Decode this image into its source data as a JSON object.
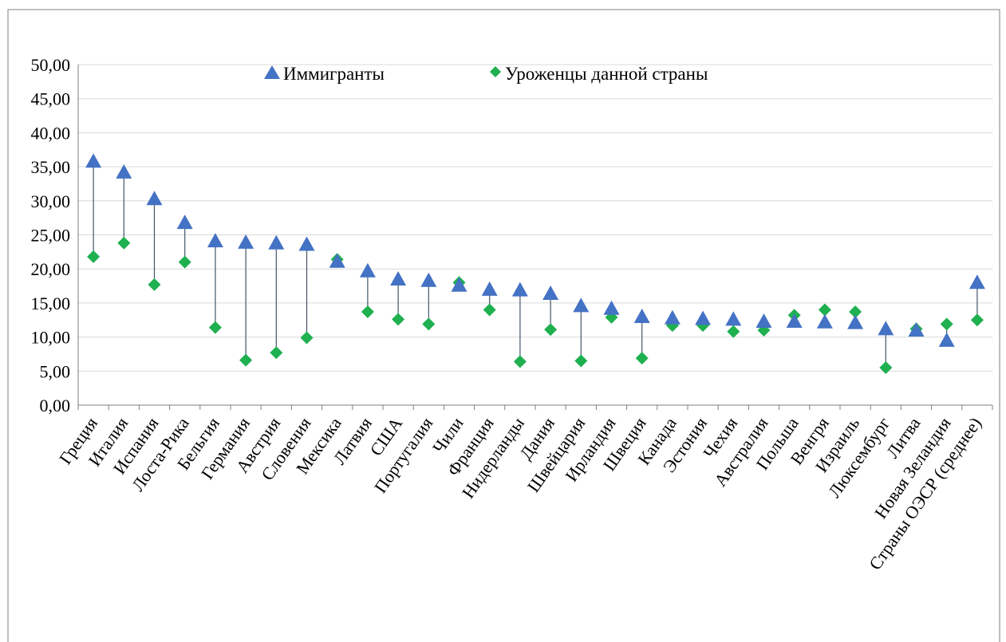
{
  "chart_data": {
    "type": "scatter",
    "title": "",
    "xlabel": "",
    "ylabel": "",
    "ylim": [
      0,
      50
    ],
    "y_ticks": [
      "0,00",
      "5,00",
      "10,00",
      "15,00",
      "20,00",
      "25,00",
      "30,00",
      "35,00",
      "40,00",
      "45,00",
      "50,00"
    ],
    "grid": true,
    "legend_position": "top",
    "categories": [
      "Греция",
      "Италия",
      "Испания",
      "Лоста-Рика",
      "Бельгия",
      "Германия",
      "Австрия",
      "Словения",
      "Мексика",
      "Латвия",
      "США",
      "Португалия",
      "Чили",
      "Франция",
      "Нидерланды",
      "Дания",
      "Швейцария",
      "Ирландия",
      "Швеция",
      "Канада",
      "Эстония",
      "Чехия",
      "Австралия",
      "Польша",
      "Венгря",
      "Израиль",
      "Люксембург",
      "Литва",
      "Новая Зеландия",
      "Страны ОЭСР (среднее)"
    ],
    "series": [
      {
        "name": "Иммигранты",
        "marker": "triangle",
        "color": "#4472c4",
        "values": [
          35.8,
          34.2,
          30.3,
          26.8,
          24.1,
          23.9,
          23.8,
          23.6,
          21.1,
          19.7,
          18.5,
          18.3,
          17.6,
          17.0,
          16.9,
          16.4,
          14.6,
          14.2,
          13.0,
          12.8,
          12.7,
          12.6,
          12.3,
          12.3,
          12.2,
          12.1,
          11.2,
          11.0,
          9.5,
          18.0
        ]
      },
      {
        "name": "Уроженцы данной страны",
        "marker": "diamond",
        "color": "#1fb050",
        "values": [
          21.8,
          23.8,
          17.7,
          21.0,
          11.4,
          6.6,
          7.7,
          9.9,
          21.4,
          13.7,
          12.6,
          11.9,
          18.0,
          14.0,
          6.4,
          11.1,
          6.5,
          12.9,
          6.9,
          11.7,
          11.7,
          10.8,
          11.0,
          13.2,
          14.0,
          13.7,
          5.5,
          11.2,
          11.9,
          12.5
        ]
      }
    ]
  }
}
